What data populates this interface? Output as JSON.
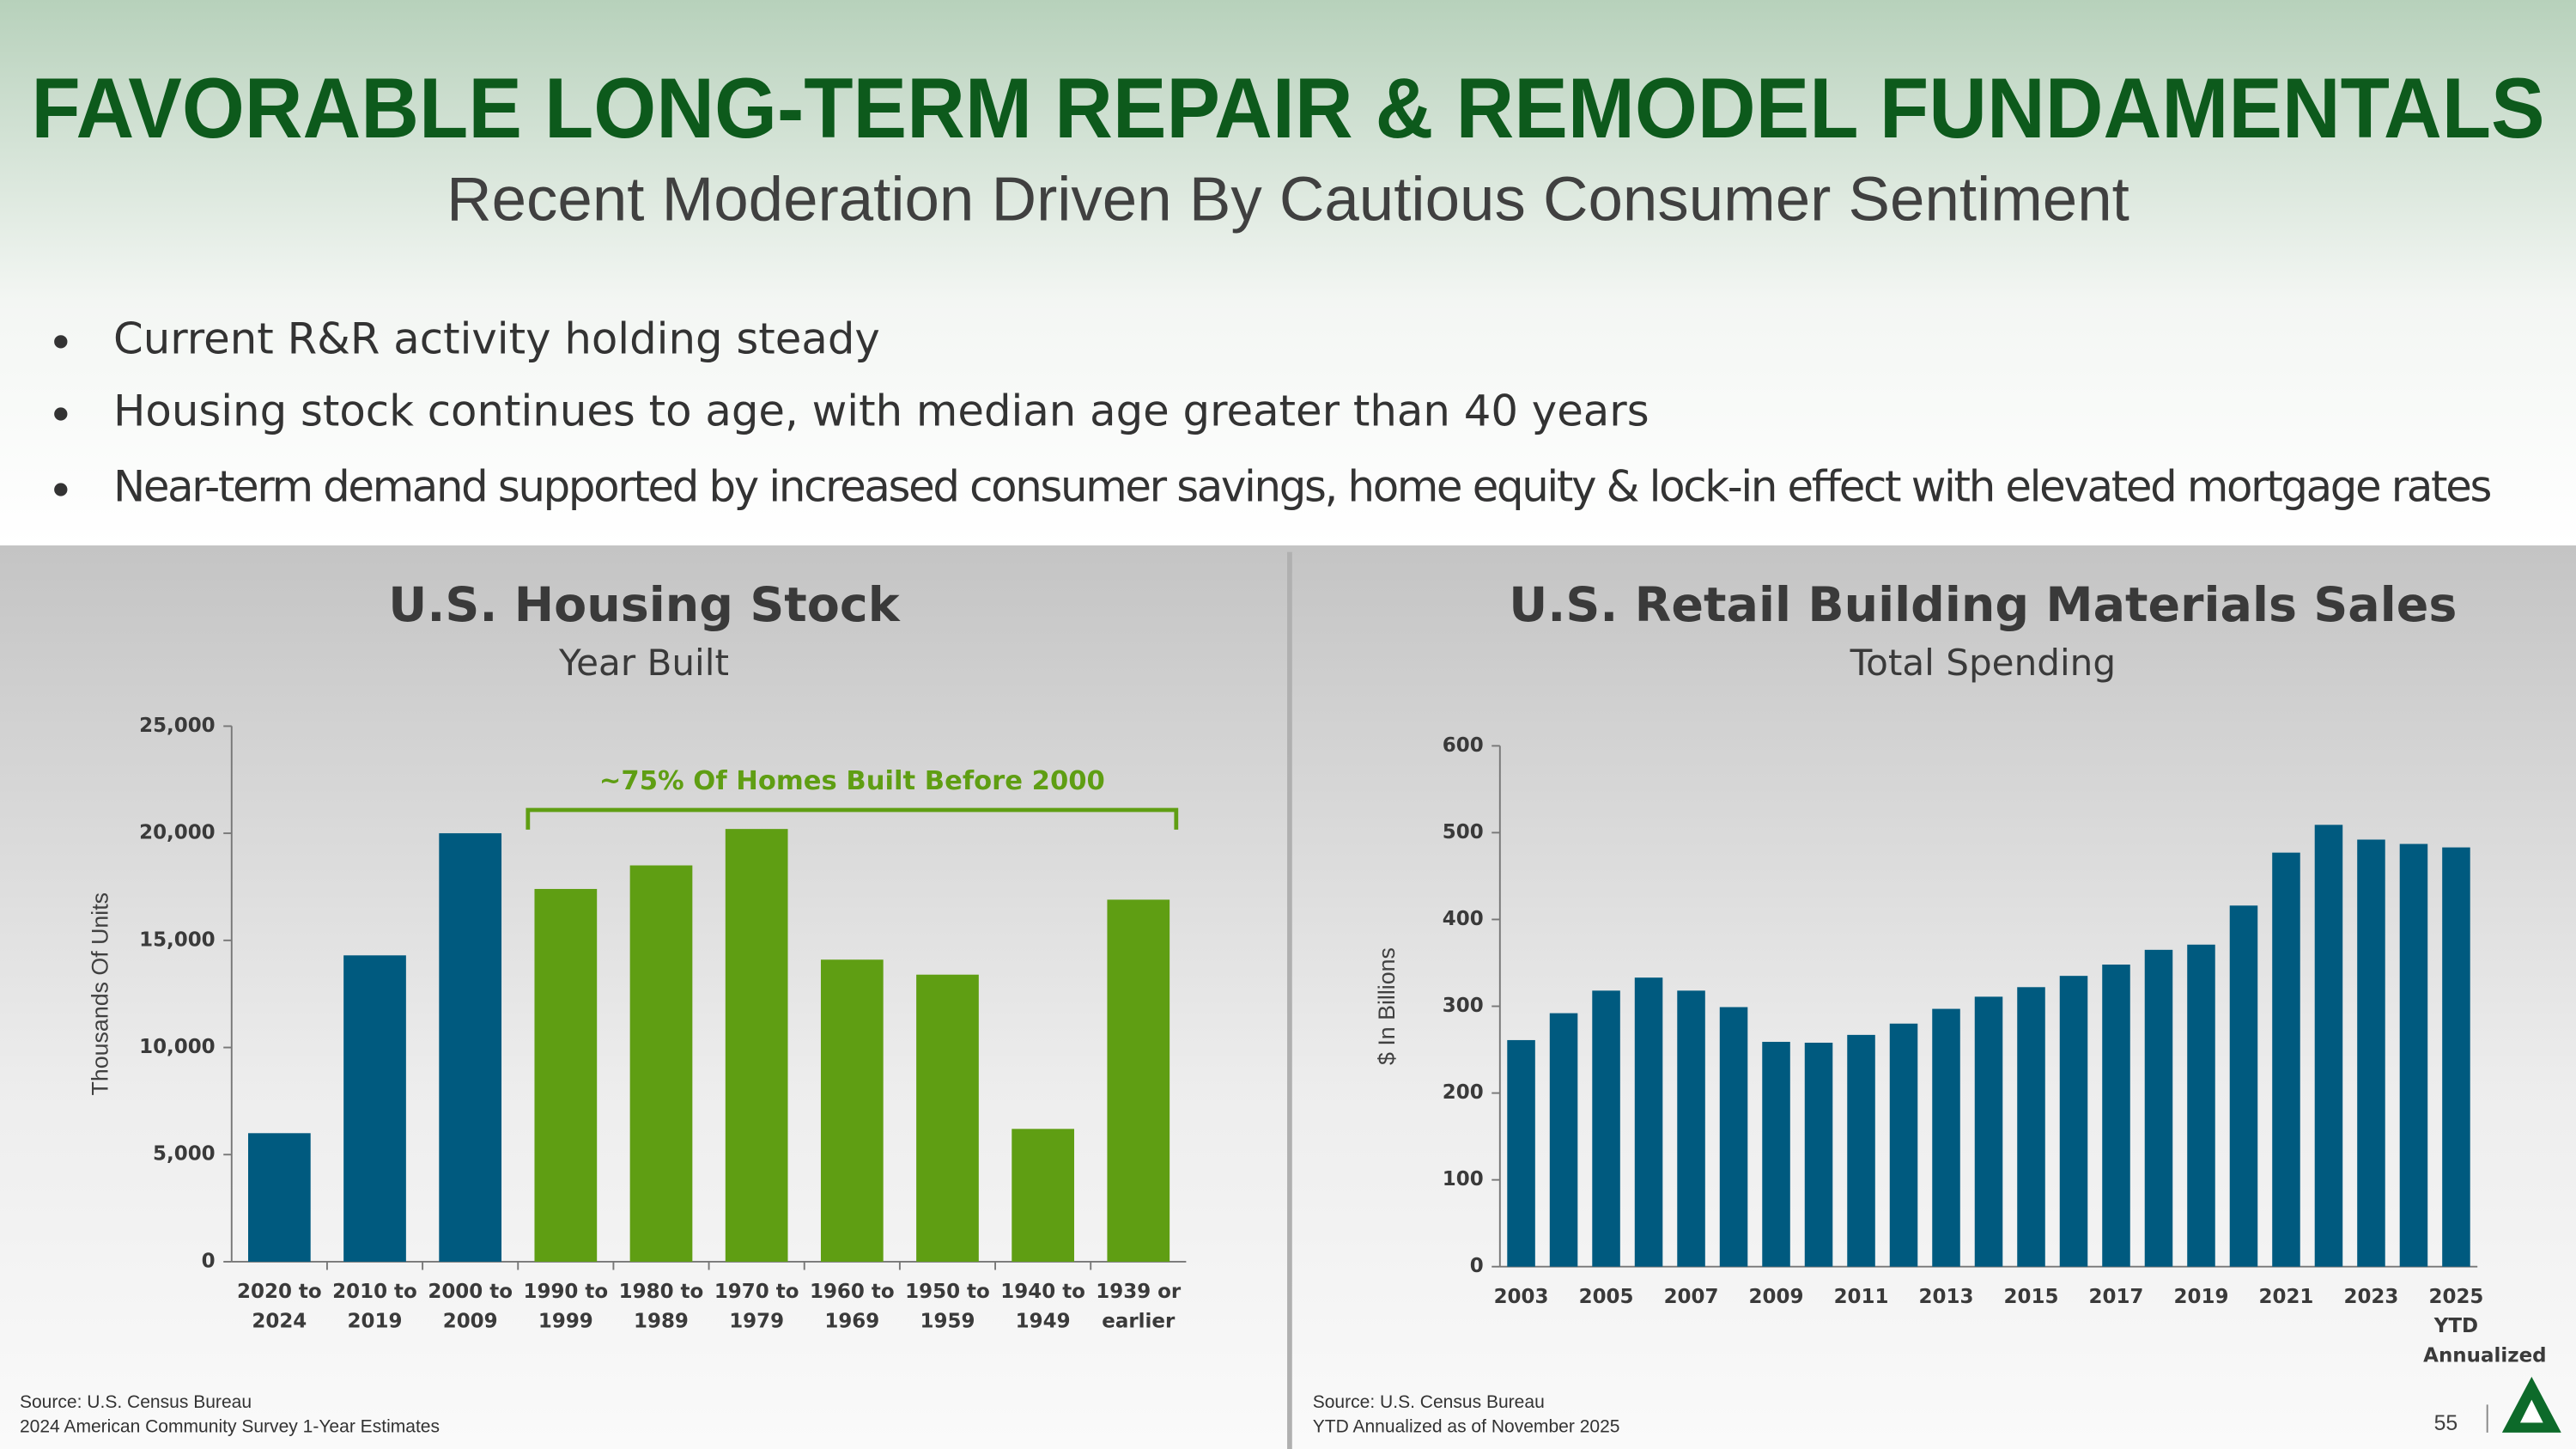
{
  "header": {
    "title": "FAVORABLE LONG-TERM REPAIR & REMODEL FUNDAMENTALS",
    "subtitle": "Recent Moderation Driven By Cautious Consumer Sentiment"
  },
  "bullets": [
    "Current R&R activity holding steady",
    "Housing stock continues to age, with median age greater than 40 years",
    "Near-term demand supported by increased consumer savings, home equity & lock-in effect with elevated mortgage rates"
  ],
  "chart_data": [
    {
      "type": "bar",
      "title": "U.S. Housing Stock",
      "subtitle": "Year Built",
      "y_label": "Thousands Of Units",
      "categories": [
        "2020 to 2024",
        "2010 to 2019",
        "2000 to 2009",
        "1990 to 1999",
        "1980 to 1989",
        "1970 to 1979",
        "1960 to 1969",
        "1950 to 1959",
        "1940 to 1949",
        "1939 or earlier"
      ],
      "values": [
        6000,
        14300,
        20000,
        17400,
        18500,
        20200,
        14100,
        13400,
        6200,
        16900
      ],
      "colors": [
        "#005a7f",
        "#005a7f",
        "#005a7f",
        "#5f9e13",
        "#5f9e13",
        "#5f9e13",
        "#5f9e13",
        "#5f9e13",
        "#5f9e13",
        "#5f9e13"
      ],
      "annotation": "~75% Of Homes Built Before 2000",
      "ylim": [
        0,
        25000
      ],
      "yticks": [
        0,
        {
          "value": 5000,
          "label": "5,000"
        },
        {
          "value": 10000,
          "label": "10,000"
        },
        {
          "value": 15000,
          "label": "15,000"
        },
        {
          "value": 20000,
          "label": "20,000"
        },
        {
          "value": 25000,
          "label": "25,000"
        }
      ],
      "grid": false,
      "source": [
        "Source: U.S. Census Bureau",
        "2024 American Community Survey 1-Year Estimates"
      ]
    },
    {
      "type": "bar",
      "title": "U.S. Retail Building Materials Sales",
      "subtitle": "Total Spending",
      "y_label": "$ In Billions",
      "categories": [
        "2003",
        null,
        "2005",
        null,
        "2007",
        null,
        "2009",
        null,
        "2011",
        null,
        "2013",
        null,
        "2015",
        null,
        "2017",
        null,
        "2019",
        null,
        "2021",
        null,
        "2023",
        null,
        "2025 YTD Annualized"
      ],
      "values": [
        261,
        292,
        318,
        333,
        318,
        299,
        259,
        258,
        267,
        280,
        297,
        311,
        322,
        335,
        348,
        365,
        371,
        416,
        477,
        509,
        492,
        487,
        483
      ],
      "color": "#005a7f",
      "ylim": [
        0,
        600
      ],
      "yticks": [
        0,
        100,
        200,
        300,
        400,
        500,
        600
      ],
      "grid": false,
      "source": [
        "Source: U.S. Census Bureau",
        "YTD Annualized as of November 2025"
      ]
    }
  ],
  "footer": {
    "page": "55"
  }
}
